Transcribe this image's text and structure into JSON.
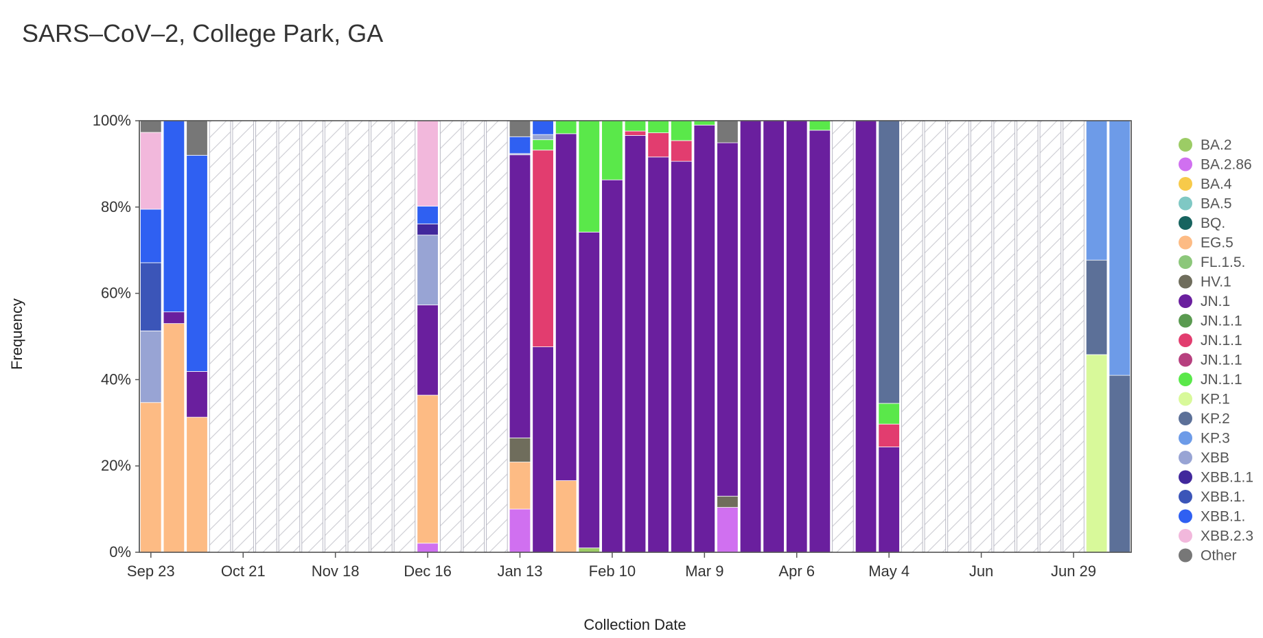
{
  "chart_data": {
    "type": "bar",
    "stacked": true,
    "normalized": true,
    "title": "SARS–CoV–2, College Park, GA",
    "xlabel": "Collection Date",
    "ylabel": "Frequency",
    "ylim": [
      0,
      100
    ],
    "y_ticks": [
      "0%",
      "20%",
      "40%",
      "60%",
      "80%",
      "100%"
    ],
    "x_ticks": [
      {
        "label": "Sep 23",
        "index": 0
      },
      {
        "label": "Oct 21",
        "index": 4
      },
      {
        "label": "Nov 18",
        "index": 8
      },
      {
        "label": "Dec 16",
        "index": 12
      },
      {
        "label": "Jan 13",
        "index": 16
      },
      {
        "label": "Feb 10",
        "index": 20
      },
      {
        "label": "Mar 9",
        "index": 24
      },
      {
        "label": "Apr 6",
        "index": 28
      },
      {
        "label": "May 4",
        "index": 32
      },
      {
        "label": "Jun",
        "index": 36
      },
      {
        "label": "Jun 29",
        "index": 40
      }
    ],
    "n_periods": 43,
    "legend": [
      {
        "name": "BA.2",
        "color": "#9ccc65"
      },
      {
        "name": "BA.2.86",
        "color": "#d070f0"
      },
      {
        "name": "BA.4",
        "color": "#f7ca4a"
      },
      {
        "name": "BA.5",
        "color": "#7fc8c4"
      },
      {
        "name": "BQ.",
        "color": "#17635f"
      },
      {
        "name": "EG.5",
        "color": "#fdbb84"
      },
      {
        "name": "FL.1.5.",
        "color": "#8cc77a"
      },
      {
        "name": "HV.1",
        "color": "#6f6d5c"
      },
      {
        "name": "JN.1",
        "color": "#6a1f9e"
      },
      {
        "name": "JN.1.1",
        "color": "#5a9a50"
      },
      {
        "name": "JN.1.1",
        "color": "#e23d6f"
      },
      {
        "name": "JN.1.1",
        "color": "#b7407f"
      },
      {
        "name": "JN.1.1",
        "color": "#5ae84a"
      },
      {
        "name": "KP.1",
        "color": "#d8f99a"
      },
      {
        "name": "KP.2",
        "color": "#5c7098"
      },
      {
        "name": "KP.3",
        "color": "#6d9be8"
      },
      {
        "name": "XBB",
        "color": "#98a4d4"
      },
      {
        "name": "XBB.1.1",
        "color": "#41289c"
      },
      {
        "name": "XBB.1.",
        "color": "#3b55b8"
      },
      {
        "name": "XBB.1.",
        "color": "#2f60f2"
      },
      {
        "name": "XBB.2.3",
        "color": "#f2b8dc"
      },
      {
        "name": "Other",
        "color": "#777777"
      }
    ],
    "bars": [
      {
        "index": 0,
        "segments": [
          [
            "EG.5",
            34.7
          ],
          [
            "XBB",
            16.6
          ],
          [
            "XBB.1.",
            15.8
          ],
          [
            "XBB.1.",
            12.4
          ],
          [
            "XBB.2.3",
            17.8
          ],
          [
            "Other",
            2.7
          ]
        ]
      },
      {
        "index": 1,
        "segments": [
          [
            "EG.5",
            53.0
          ],
          [
            "JN.1",
            2.7
          ],
          [
            "XBB.1.",
            44.3
          ]
        ]
      },
      {
        "index": 2,
        "segments": [
          [
            "EG.5",
            31.3
          ],
          [
            "JN.1",
            10.6
          ],
          [
            "XBB.1.",
            50.1
          ],
          [
            "Other",
            8.0
          ]
        ]
      },
      {
        "index": 12,
        "segments": [
          [
            "BA.2.86",
            2.1
          ],
          [
            "EG.5",
            34.3
          ],
          [
            "JN.1",
            20.9
          ],
          [
            "XBB",
            16.2
          ],
          [
            "XBB.1.1",
            2.6
          ],
          [
            "XBB.1.",
            4.1
          ],
          [
            "XBB.2.3",
            19.8
          ]
        ]
      },
      {
        "index": 16,
        "segments": [
          [
            "BA.2.86",
            10.0
          ],
          [
            "EG.5",
            10.9
          ],
          [
            "HV.1",
            5.6
          ],
          [
            "JN.1",
            65.6
          ],
          [
            "XBB",
            0.3
          ],
          [
            "XBB.1.",
            3.9
          ],
          [
            "Other",
            3.7
          ]
        ]
      },
      {
        "index": 17,
        "segments": [
          [
            "JN.1",
            47.6
          ],
          [
            "JN.1.1",
            45.6
          ],
          [
            "JN.1.1",
            2.4
          ],
          [
            "XBB",
            1.2
          ],
          [
            "XBB.1.",
            3.2
          ]
        ]
      },
      {
        "index": 18,
        "segments": [
          [
            "EG.5",
            16.6
          ],
          [
            "JN.1",
            80.4
          ],
          [
            "JN.1.1",
            3.0
          ]
        ]
      },
      {
        "index": 19,
        "segments": [
          [
            "BA.2",
            1.0
          ],
          [
            "JN.1",
            73.2
          ],
          [
            "JN.1.1",
            25.8
          ]
        ]
      },
      {
        "index": 20,
        "segments": [
          [
            "JN.1",
            86.3
          ],
          [
            "JN.1.1",
            13.7
          ]
        ]
      },
      {
        "index": 21,
        "segments": [
          [
            "JN.1",
            96.6
          ],
          [
            "JN.1.1",
            1.0
          ],
          [
            "JN.1.1",
            2.4
          ]
        ]
      },
      {
        "index": 22,
        "segments": [
          [
            "JN.1",
            91.6
          ],
          [
            "JN.1.1",
            5.6
          ],
          [
            "JN.1.1",
            2.8
          ]
        ]
      },
      {
        "index": 23,
        "segments": [
          [
            "JN.1",
            90.6
          ],
          [
            "JN.1.1",
            4.8
          ],
          [
            "JN.1.1",
            4.6
          ]
        ]
      },
      {
        "index": 24,
        "segments": [
          [
            "JN.1",
            99.0
          ],
          [
            "JN.1.1",
            1.0
          ]
        ]
      },
      {
        "index": 25,
        "segments": [
          [
            "BA.2.86",
            10.4
          ],
          [
            "HV.1",
            2.6
          ],
          [
            "JN.1",
            81.9
          ],
          [
            "Other",
            5.1
          ]
        ]
      },
      {
        "index": 26,
        "segments": [
          [
            "JN.1",
            100
          ]
        ]
      },
      {
        "index": 27,
        "segments": [
          [
            "JN.1",
            100
          ]
        ]
      },
      {
        "index": 28,
        "segments": [
          [
            "JN.1",
            100
          ]
        ]
      },
      {
        "index": 29,
        "segments": [
          [
            "JN.1",
            97.8
          ],
          [
            "JN.1.1",
            2.2
          ]
        ]
      },
      {
        "index": 31,
        "segments": [
          [
            "JN.1",
            100
          ]
        ]
      },
      {
        "index": 32,
        "segments": [
          [
            "JN.1",
            24.4
          ],
          [
            "JN.1.1",
            5.3
          ],
          [
            "JN.1.1",
            4.8
          ],
          [
            "KP.2",
            65.5
          ]
        ]
      },
      {
        "index": 41,
        "segments": [
          [
            "KP.1",
            45.8
          ],
          [
            "KP.2",
            21.9
          ],
          [
            "KP.3",
            32.3
          ]
        ]
      },
      {
        "index": 42,
        "segments": [
          [
            "KP.2",
            41.0
          ],
          [
            "KP.3",
            59.0
          ]
        ]
      }
    ]
  }
}
